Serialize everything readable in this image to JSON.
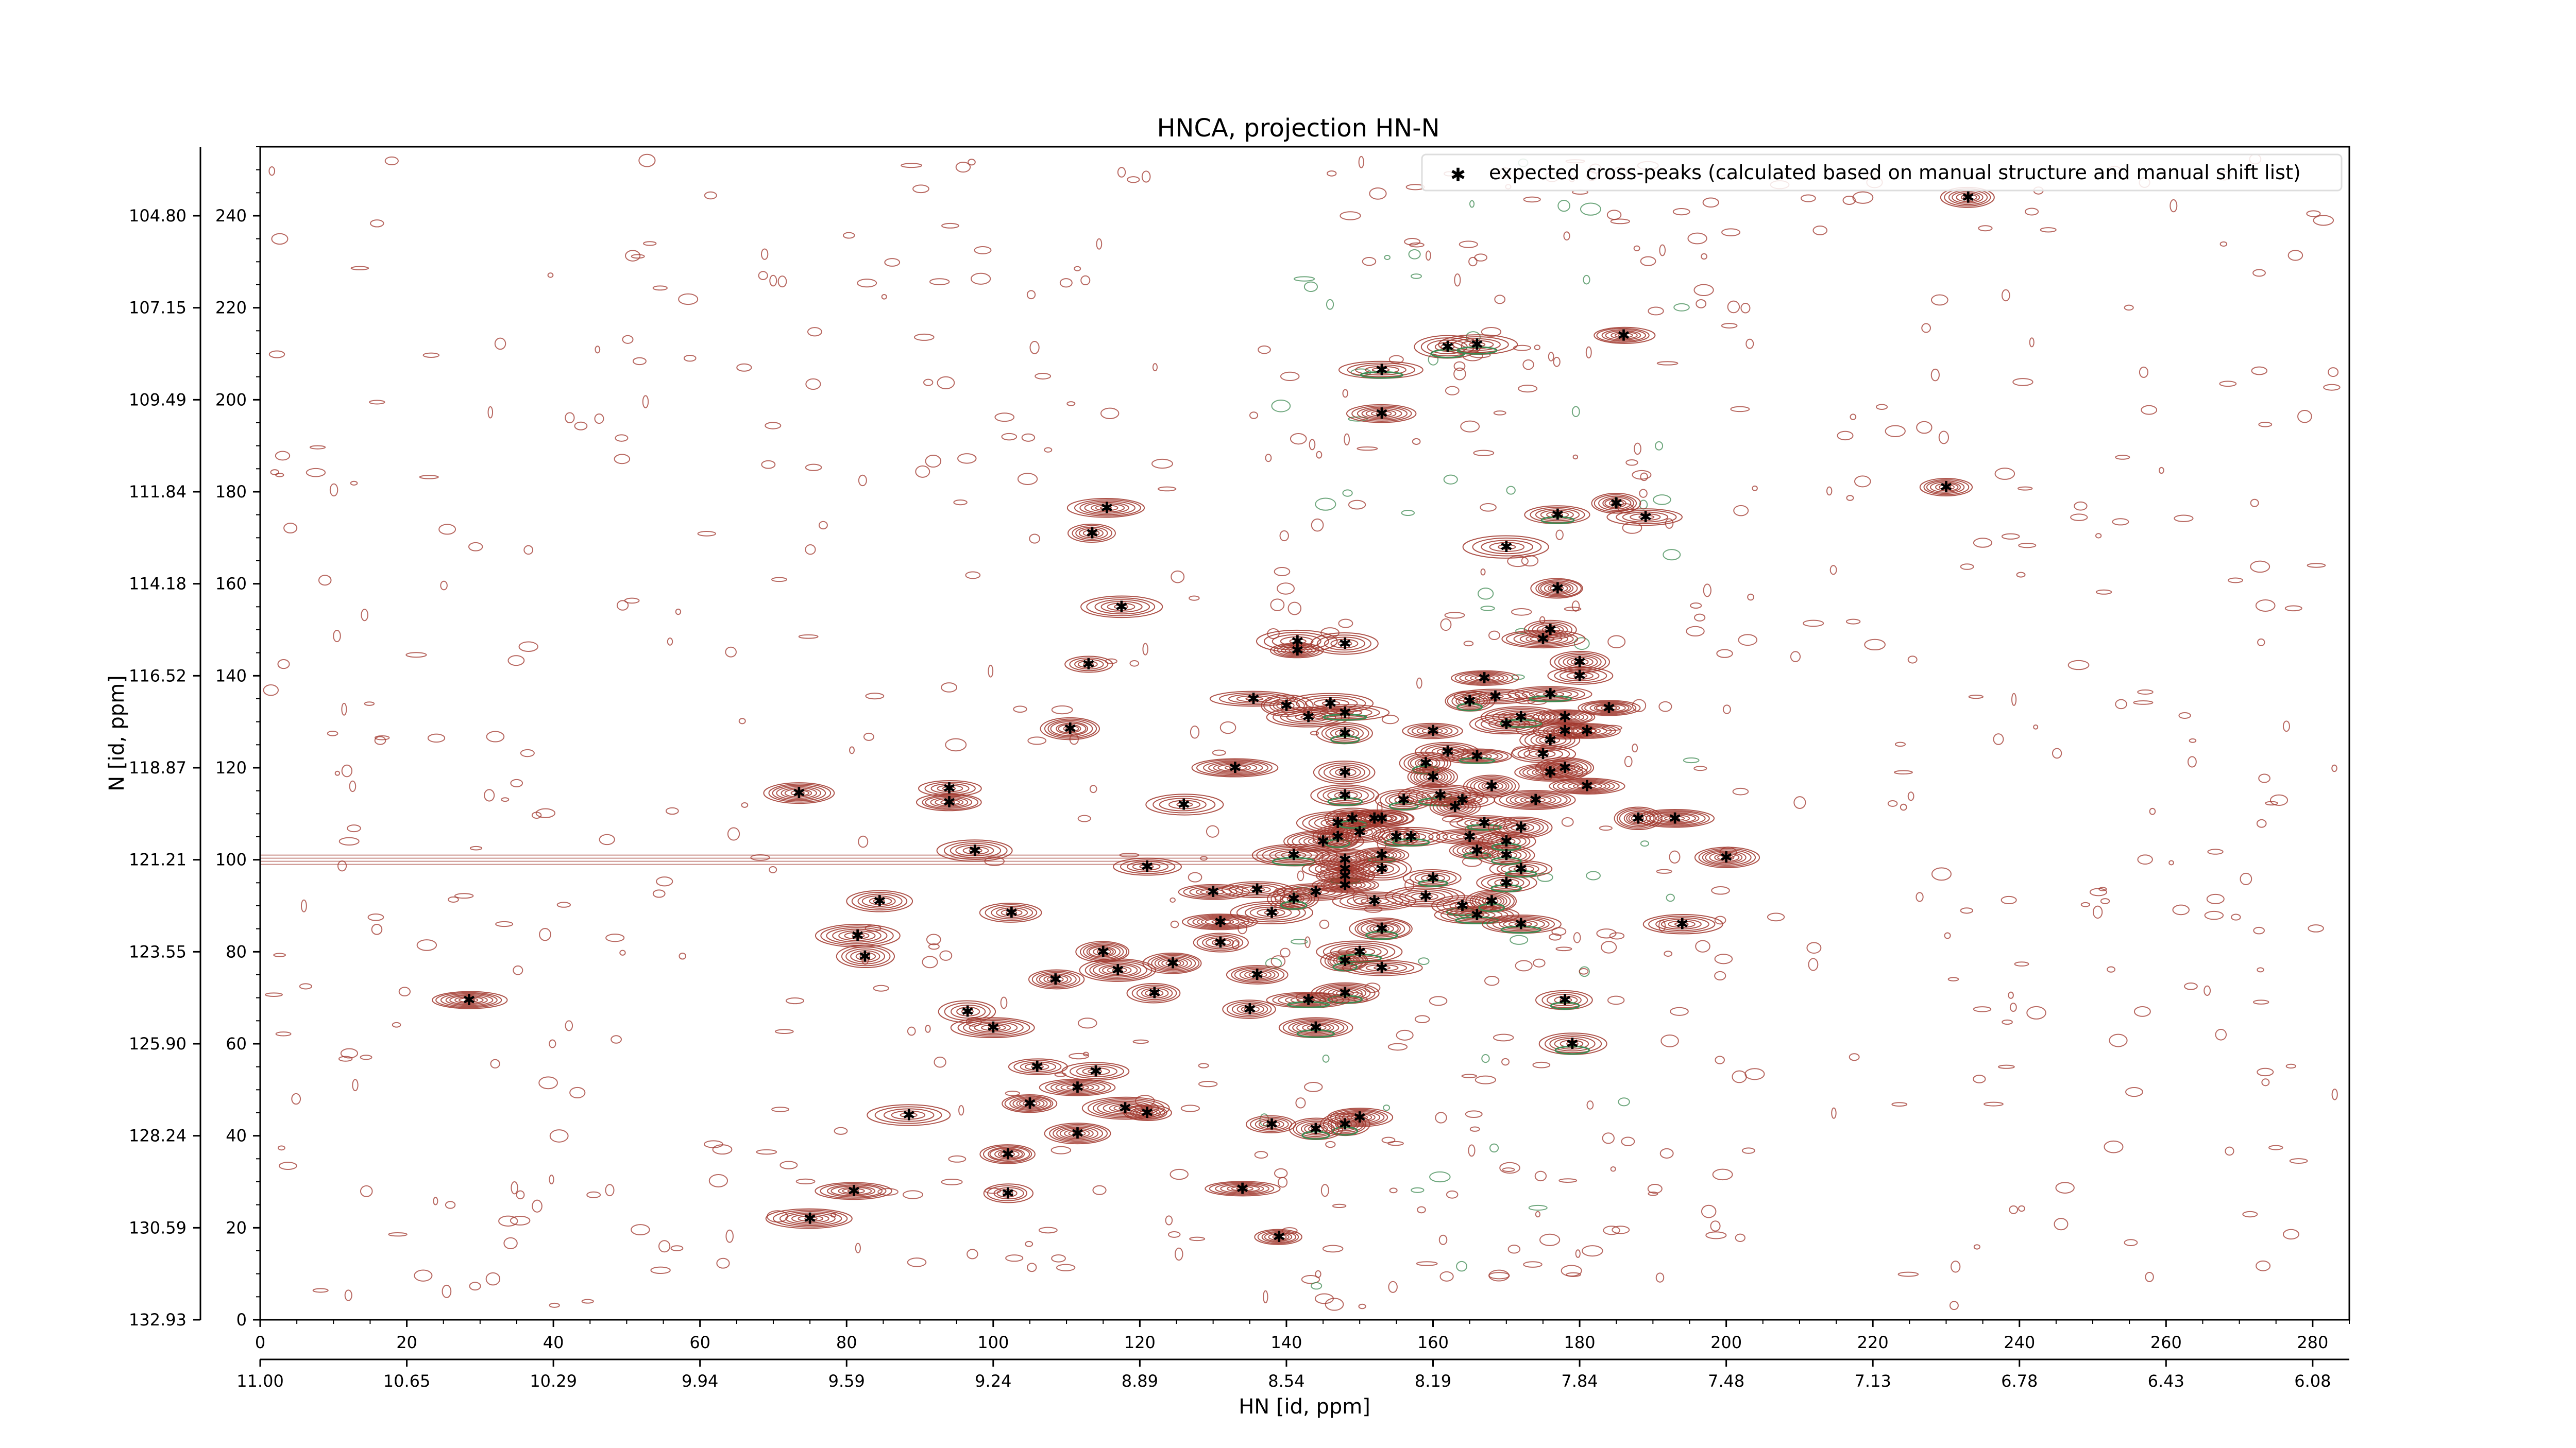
{
  "chart_data": {
    "type": "scatter",
    "title": "HNCA, projection HN-N",
    "xlabel": "HN [id, ppm]",
    "ylabel": "N [id, ppm]",
    "xlim": [
      0,
      285
    ],
    "ylim": [
      0,
      255
    ],
    "x_ticks": [
      0,
      20,
      40,
      60,
      80,
      100,
      120,
      140,
      160,
      180,
      200,
      220,
      240,
      260,
      280
    ],
    "y_ticks": [
      0,
      20,
      40,
      60,
      80,
      100,
      120,
      140,
      160,
      180,
      200,
      220,
      240
    ],
    "x_ppm_labels": [
      "11.00",
      "10.65",
      "10.29",
      "9.94",
      "9.59",
      "9.24",
      "8.89",
      "8.54",
      "8.19",
      "7.84",
      "7.48",
      "7.13",
      "6.78",
      "6.43",
      "6.08"
    ],
    "y_ppm_labels": [
      "132.93",
      "130.59",
      "128.24",
      "125.90",
      "123.55",
      "121.21",
      "118.87",
      "116.52",
      "114.18",
      "111.84",
      "109.49",
      "107.15",
      "104.80"
    ],
    "legend": {
      "label": "expected cross-peaks (calculated based on manual structure and manual shift list)",
      "position": "top-right"
    },
    "colors": {
      "positive_contour": "#a0362c",
      "negative_contour": "#3d8a52",
      "peak_marker": "#0000ee"
    },
    "grid": false,
    "series": [
      {
        "name": "expected cross-peaks (calculated based on manual structure and manual shift list)",
        "points": [
          [
            28.5,
            69.5
          ],
          [
            73.5,
            114.5
          ],
          [
            94,
            115.5
          ],
          [
            94,
            112.5
          ],
          [
            97.5,
            102
          ],
          [
            84.5,
            91
          ],
          [
            81.5,
            83.5
          ],
          [
            82.5,
            79
          ],
          [
            102.5,
            88.5
          ],
          [
            108.5,
            74
          ],
          [
            96.5,
            67
          ],
          [
            100,
            63.5
          ],
          [
            106,
            55
          ],
          [
            111.5,
            50.5
          ],
          [
            105,
            47
          ],
          [
            118,
            46
          ],
          [
            88.5,
            44.5
          ],
          [
            111.5,
            40.5
          ],
          [
            102,
            36
          ],
          [
            81,
            28
          ],
          [
            75,
            22
          ],
          [
            102,
            27.5
          ],
          [
            115.5,
            176.5
          ],
          [
            113.5,
            171
          ],
          [
            117.5,
            155
          ],
          [
            113,
            142.5
          ],
          [
            110.5,
            128.5
          ],
          [
            126,
            112
          ],
          [
            135.5,
            135
          ],
          [
            141.5,
            145.5
          ],
          [
            141.5,
            147.5
          ],
          [
            148,
            147
          ],
          [
            140,
            133.5
          ],
          [
            143,
            131
          ],
          [
            146,
            134
          ],
          [
            148,
            132
          ],
          [
            148,
            127.5
          ],
          [
            133,
            120
          ],
          [
            121,
            98.5
          ],
          [
            130,
            93
          ],
          [
            131,
            86.5
          ],
          [
            131,
            82
          ],
          [
            136,
            93.5
          ],
          [
            138,
            88.5
          ],
          [
            141,
            91.5
          ],
          [
            144,
            93
          ],
          [
            141,
            101
          ],
          [
            145,
            104
          ],
          [
            147,
            108
          ],
          [
            147,
            105
          ],
          [
            150,
            106
          ],
          [
            152,
            109
          ],
          [
            153,
            101
          ],
          [
            148,
            100
          ],
          [
            148,
            98
          ],
          [
            148,
            96.5
          ],
          [
            148,
            94.5
          ],
          [
            148,
            119
          ],
          [
            148,
            114
          ],
          [
            149,
            109
          ],
          [
            153,
            109
          ],
          [
            155,
            105
          ],
          [
            156,
            113
          ],
          [
            157,
            105
          ],
          [
            152,
            91
          ],
          [
            153,
            98
          ],
          [
            153,
            85
          ],
          [
            148,
            78
          ],
          [
            150,
            80
          ],
          [
            153,
            76.5
          ],
          [
            148,
            71
          ],
          [
            136,
            75
          ],
          [
            135,
            67.5
          ],
          [
            143,
            69.5
          ],
          [
            144,
            63.5
          ],
          [
            115,
            80
          ],
          [
            117,
            76
          ],
          [
            122,
            71
          ],
          [
            124.5,
            77.5
          ],
          [
            114,
            54
          ],
          [
            121,
            45
          ],
          [
            148,
            42.5
          ],
          [
            138,
            42.5
          ],
          [
            144,
            41.5
          ],
          [
            150,
            44
          ],
          [
            134,
            28.5
          ],
          [
            139,
            18
          ],
          [
            160,
            128
          ],
          [
            162,
            123.5
          ],
          [
            159,
            121
          ],
          [
            160,
            118
          ],
          [
            161,
            114
          ],
          [
            163,
            111.5
          ],
          [
            164,
            113
          ],
          [
            165,
            105
          ],
          [
            166,
            102
          ],
          [
            167,
            108
          ],
          [
            168,
            116
          ],
          [
            166,
            122.5
          ],
          [
            170,
            129.5
          ],
          [
            168.5,
            135.5
          ],
          [
            172,
            131
          ],
          [
            165,
            134.5
          ],
          [
            167,
            139.5
          ],
          [
            159,
            92
          ],
          [
            160,
            96
          ],
          [
            164,
            90
          ],
          [
            166,
            88
          ],
          [
            168,
            91
          ],
          [
            170,
            95
          ],
          [
            172,
            98
          ],
          [
            170,
            101
          ],
          [
            170,
            104
          ],
          [
            172,
            107
          ],
          [
            174,
            113
          ],
          [
            176,
            119
          ],
          [
            175,
            123
          ],
          [
            176,
            126
          ],
          [
            178,
            128
          ],
          [
            178,
            131
          ],
          [
            176,
            136
          ],
          [
            180,
            140
          ],
          [
            180,
            143
          ],
          [
            175,
            148
          ],
          [
            176,
            150
          ],
          [
            177,
            159
          ],
          [
            170,
            168
          ],
          [
            177,
            175
          ],
          [
            185,
            177.5
          ],
          [
            189,
            174.5
          ],
          [
            184,
            133
          ],
          [
            181,
            128
          ],
          [
            178,
            120
          ],
          [
            181,
            116
          ],
          [
            188,
            109
          ],
          [
            193,
            109
          ],
          [
            200,
            100.5
          ],
          [
            194,
            86
          ],
          [
            172,
            86
          ],
          [
            178,
            69.5
          ],
          [
            179,
            60
          ],
          [
            153,
            197
          ],
          [
            153,
            206.5
          ],
          [
            162,
            211.5
          ],
          [
            166,
            212
          ],
          [
            186,
            214
          ],
          [
            230,
            181
          ],
          [
            233,
            244
          ]
        ]
      }
    ]
  }
}
